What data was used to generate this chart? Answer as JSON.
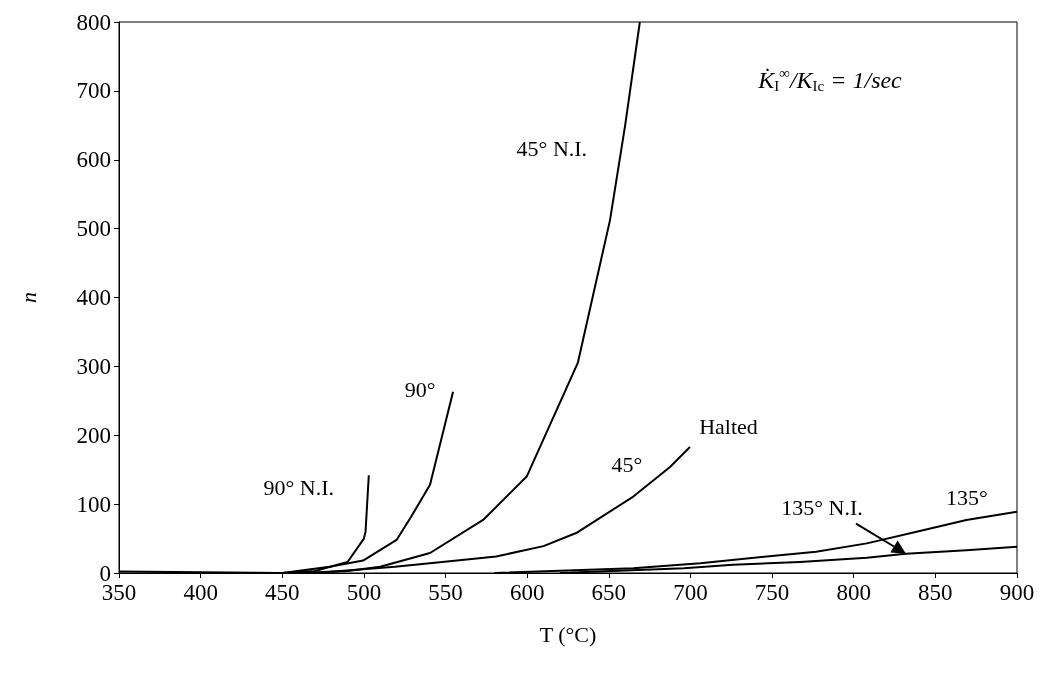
{
  "chart_data": {
    "type": "line",
    "xlabel": "T (°C)",
    "ylabel": "n",
    "xlim": [
      350,
      900
    ],
    "xticks": [
      350,
      400,
      450,
      500,
      550,
      600,
      650,
      700,
      750,
      800,
      850,
      900
    ],
    "ylim": [
      0,
      800
    ],
    "yticks": [
      0,
      100,
      200,
      300,
      400,
      500,
      600,
      700,
      800
    ],
    "grid": false,
    "legend": false,
    "marker": "none",
    "line_style": "solid",
    "annotations": [
      "K̇$_{I}$$^{∞}$/K$_{Ic}$ = 1/sec",
      {
        "text": "Halted",
        "x": 700,
        "y": 183
      }
    ],
    "series": [
      {
        "name": "90° N.I.",
        "color": "#000000",
        "x": [
          350,
          450,
          470,
          490,
          500,
          501,
          503
        ],
        "values": [
          2,
          0,
          3,
          16,
          50,
          60,
          142
        ]
      },
      {
        "name": "90°",
        "color": "#000000",
        "x": [
          450,
          479,
          499.5,
          520,
          529,
          540.5,
          554.6
        ],
        "values": [
          0,
          9,
          18,
          48,
          82,
          128,
          263
        ]
      },
      {
        "name": "45° N.I.",
        "color": "#000000",
        "x": [
          460,
          490,
          510,
          540.5,
          573,
          599.7,
          631,
          650.7,
          660,
          669
        ],
        "values": [
          0,
          3,
          9,
          29,
          77,
          140,
          305,
          512,
          650,
          800
        ]
      },
      {
        "name": "45°",
        "color": "#000000",
        "x": [
          470,
          519,
          548,
          581,
          610,
          630,
          644.6,
          665,
          687.5,
          699.7
        ],
        "values": [
          0,
          9,
          16,
          24,
          39,
          58,
          80,
          111,
          154,
          183
        ]
      },
      {
        "name": "135°",
        "color": "#000000",
        "x": [
          580,
          665,
          706,
          746.7,
          777,
          808,
          838.5,
          869,
          900
        ],
        "values": [
          0,
          7,
          14,
          24,
          31,
          43,
          60,
          77,
          89
        ]
      },
      {
        "name": "135° N.I.",
        "color": "#000000",
        "x": [
          620,
          696,
          726,
          767,
          808,
          832,
          869,
          900
        ],
        "values": [
          0,
          7,
          12,
          16,
          22,
          28,
          33,
          38
        ]
      }
    ]
  }
}
